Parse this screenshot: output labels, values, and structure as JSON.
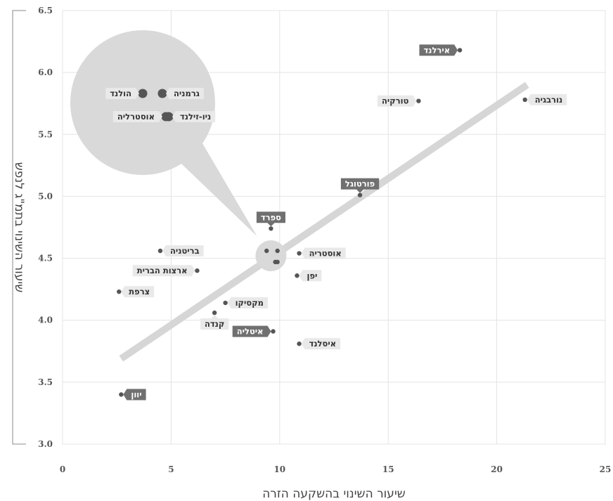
{
  "chart_data": {
    "type": "scatter",
    "xlabel": "שיעור השינוי בהשקעה הזרה",
    "ylabel": "שיעור השינוי בתמ\"ג לנפש",
    "xlim": [
      0,
      25
    ],
    "ylim": [
      3.0,
      6.5
    ],
    "xticks": [
      0,
      5,
      10,
      15,
      20,
      25
    ],
    "yticks": [
      "3.0",
      "3.5",
      "4.0",
      "4.5",
      "5.0",
      "5.5",
      "6.0",
      "6.5"
    ],
    "grid": true,
    "trendline": {
      "x": [
        2.7,
        21.4
      ],
      "y": [
        3.69,
        5.9
      ]
    },
    "points": [
      {
        "label": "אירלנד",
        "x": 18.3,
        "y": 6.18,
        "style": "dark",
        "pos": "left"
      },
      {
        "label": "טורקיה",
        "x": 16.4,
        "y": 5.77,
        "style": "light",
        "pos": "left"
      },
      {
        "label": "נורבגיה",
        "x": 21.3,
        "y": 5.78,
        "style": "light",
        "pos": "right"
      },
      {
        "label": "פורטוגל",
        "x": 13.7,
        "y": 5.01,
        "style": "dark",
        "pos": "above"
      },
      {
        "label": "ספרד",
        "x": 9.6,
        "y": 4.74,
        "style": "dark",
        "pos": "above"
      },
      {
        "label": "בריטניה",
        "x": 4.5,
        "y": 4.56,
        "style": "light",
        "pos": "right"
      },
      {
        "label": "אוסטריה",
        "x": 10.9,
        "y": 4.54,
        "style": "light",
        "pos": "right"
      },
      {
        "label": "ארצות הברית",
        "x": 6.2,
        "y": 4.4,
        "style": "light",
        "pos": "left"
      },
      {
        "label": "יפן",
        "x": 10.8,
        "y": 4.36,
        "style": "light",
        "pos": "right"
      },
      {
        "label": "צרפת",
        "x": 2.6,
        "y": 4.23,
        "style": "light",
        "pos": "right"
      },
      {
        "label": "מקסיקו",
        "x": 7.5,
        "y": 4.14,
        "style": "light",
        "pos": "right"
      },
      {
        "label": "קנדה",
        "x": 7.0,
        "y": 4.06,
        "style": "light",
        "pos": "below"
      },
      {
        "label": "איטליה",
        "x": 9.7,
        "y": 3.91,
        "style": "dark",
        "pos": "left"
      },
      {
        "label": "איסלנד",
        "x": 10.9,
        "y": 3.81,
        "style": "light",
        "pos": "right"
      },
      {
        "label": "יוון",
        "x": 2.7,
        "y": 3.4,
        "style": "dark",
        "pos": "right"
      }
    ],
    "cluster": {
      "center": {
        "x": 9.6,
        "y": 4.52
      },
      "points": [
        {
          "label": "גרמניה",
          "x": 9.9,
          "y": 4.56
        },
        {
          "label": "הולנד",
          "x": 9.4,
          "y": 4.56
        },
        {
          "label": "ניו-זילנד",
          "x": 9.9,
          "y": 4.47
        },
        {
          "label": "אוסטרליה",
          "x": 9.8,
          "y": 4.47
        }
      ]
    },
    "colors": {
      "point": "#555555",
      "dark_label_bg": "#707070",
      "light_label_bg": "#e9e9e9",
      "trendline": "#d6d6d6",
      "bubble": "#d9d9d9",
      "grid": "#e4e4e4"
    }
  }
}
